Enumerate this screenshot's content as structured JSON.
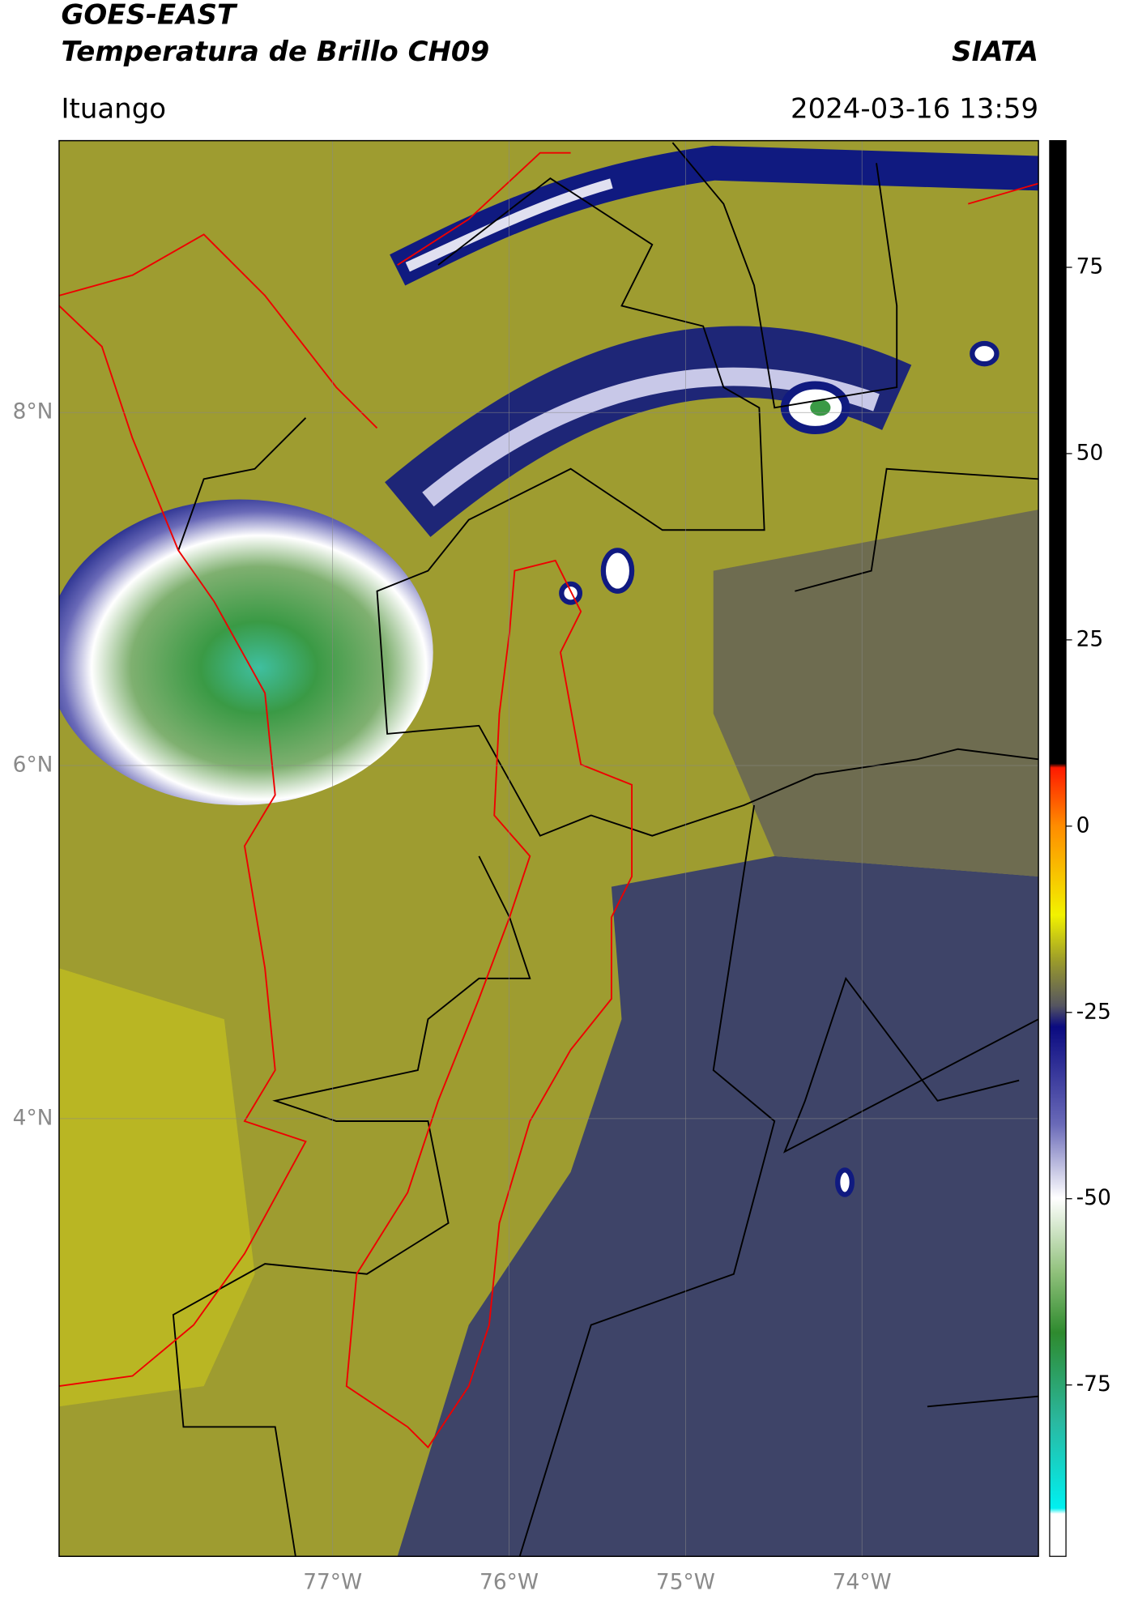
{
  "header": {
    "title": "GOES-EAST",
    "subtitle": "Temperatura de Brillo CH09",
    "brand": "SIATA",
    "location": "Ituango",
    "datetime": "2024-03-16 13:59"
  },
  "map": {
    "xlim": [
      -78.55,
      -73.0
    ],
    "ylim": [
      1.52,
      9.54
    ],
    "xticks": [
      {
        "value": -77,
        "label": "77°W"
      },
      {
        "value": -76,
        "label": "76°W"
      },
      {
        "value": -75,
        "label": "75°W"
      },
      {
        "value": -74,
        "label": "74°W"
      }
    ],
    "yticks": [
      {
        "value": 4,
        "label": "4°N"
      },
      {
        "value": 6,
        "label": "6°N"
      },
      {
        "value": 8,
        "label": "8°N"
      }
    ],
    "grid": true
  },
  "colorbar": {
    "lim": [
      -98,
      92
    ],
    "ticks": [
      -75,
      -50,
      -25,
      0,
      25,
      50,
      75
    ]
  }
}
